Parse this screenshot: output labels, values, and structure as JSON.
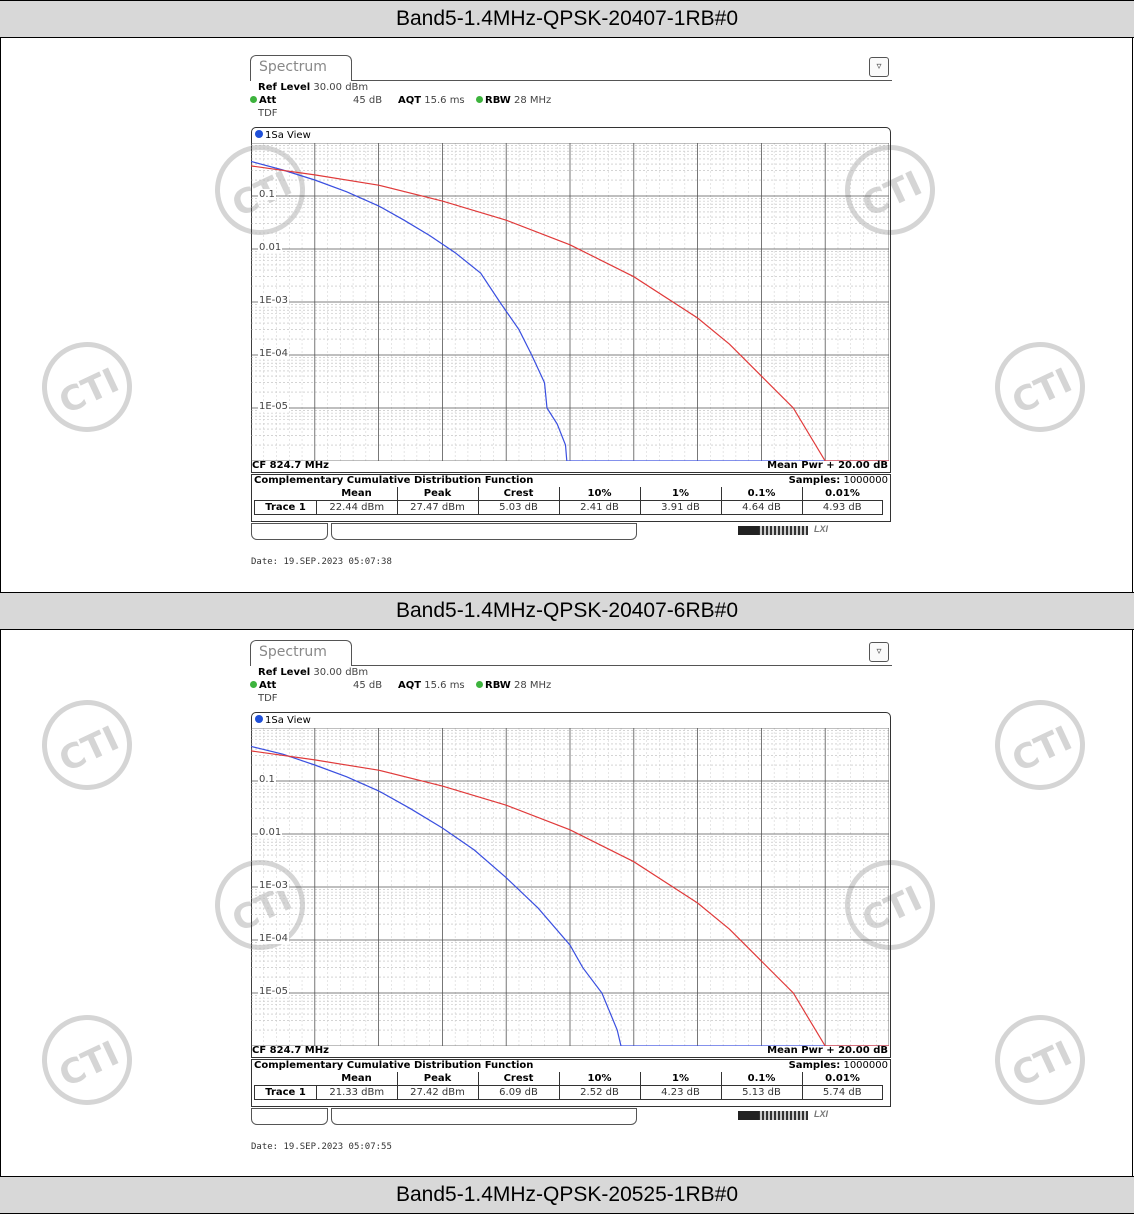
{
  "sections": [
    {
      "title": "Band5-1.4MHz-QPSK-20407-1RB#0",
      "panel": {
        "tab": "Spectrum",
        "ref_level_label": "Ref Level",
        "ref_level_value": "30.00 dBm",
        "att_label": "Att",
        "att_value": "45 dB",
        "aqt_label": "AQT",
        "aqt_value": "15.6 ms",
        "rbw_label": "RBW",
        "rbw_value": "28 MHz",
        "tdf": "TDF",
        "view": "1Sa View",
        "cf": "CF 824.7 MHz",
        "mean_pwr": "Mean Pwr + 20.00 dB",
        "func_title": "Complementary Cumulative Distribution Function",
        "samples_label": "Samples:",
        "samples_value": "1000000",
        "col_headers": [
          "Mean",
          "Peak",
          "Crest",
          "10%",
          "1%",
          "0.1%",
          "0.01%"
        ],
        "trace_label": "Trace 1",
        "values": [
          "22.44 dBm",
          "27.47 dBm",
          "5.03 dB",
          "2.41 dB",
          "3.91 dB",
          "4.64 dB",
          "4.93 dB"
        ],
        "date": "Date: 19.SEP.2023  05:07:38",
        "progress": 0.3
      }
    },
    {
      "title": "Band5-1.4MHz-QPSK-20407-6RB#0",
      "panel": {
        "tab": "Spectrum",
        "ref_level_label": "Ref Level",
        "ref_level_value": "30.00 dBm",
        "att_label": "Att",
        "att_value": "45 dB",
        "aqt_label": "AQT",
        "aqt_value": "15.6 ms",
        "rbw_label": "RBW",
        "rbw_value": "28 MHz",
        "tdf": "TDF",
        "view": "1Sa View",
        "cf": "CF 824.7 MHz",
        "mean_pwr": "Mean Pwr + 20.00 dB",
        "func_title": "Complementary Cumulative Distribution Function",
        "samples_label": "Samples:",
        "samples_value": "1000000",
        "col_headers": [
          "Mean",
          "Peak",
          "Crest",
          "10%",
          "1%",
          "0.1%",
          "0.01%"
        ],
        "trace_label": "Trace 1",
        "values": [
          "21.33 dBm",
          "27.42 dBm",
          "6.09 dB",
          "2.52 dB",
          "4.23 dB",
          "5.13 dB",
          "5.74 dB"
        ],
        "date": "Date: 19.SEP.2023  05:07:55",
        "progress": 0.3
      }
    },
    {
      "title": "Band5-1.4MHz-QPSK-20525-1RB#0"
    }
  ],
  "watermark": "CTI",
  "chart_data": [
    {
      "type": "line",
      "title": "Complementary Cumulative Distribution Function",
      "xlabel": "",
      "ylabel": "",
      "yscale": "log",
      "ylim": [
        1e-06,
        1
      ],
      "xlim": [
        0,
        10
      ],
      "y_ticks": [
        "0.1",
        "0.01",
        "1E-03",
        "1E-04",
        "1E-05"
      ],
      "grid": true,
      "colors": {
        "measured": "#3a4fe0",
        "reference": "#e03a3a"
      },
      "series": [
        {
          "x": [
            0,
            0.5,
            1,
            1.5,
            2,
            2.4,
            2.8,
            3.2,
            3.6,
            3.9,
            4.2,
            4.4,
            4.6,
            4.64,
            4.8,
            4.93,
            4.95,
            10
          ],
          "y": [
            0.45,
            0.31,
            0.2,
            0.12,
            0.065,
            0.035,
            0.018,
            0.0085,
            0.0035,
            0.001,
            0.0003,
            0.0001,
            3e-05,
            1e-05,
            5e-06,
            2e-06,
            1e-06,
            1e-06
          ]
        },
        {
          "x": [
            0,
            1,
            2,
            3,
            4,
            5,
            6,
            7,
            7.5,
            8,
            8.5,
            9,
            10
          ],
          "y": [
            0.37,
            0.25,
            0.16,
            0.08,
            0.035,
            0.012,
            0.003,
            0.0005,
            0.00016,
            4e-05,
            1e-05,
            1e-06,
            1e-06
          ]
        }
      ]
    },
    {
      "type": "line",
      "title": "Complementary Cumulative Distribution Function",
      "xlabel": "",
      "ylabel": "",
      "yscale": "log",
      "ylim": [
        1e-06,
        1
      ],
      "xlim": [
        0,
        10
      ],
      "y_ticks": [
        "0.1",
        "0.01",
        "1E-03",
        "1E-04",
        "1E-05"
      ],
      "grid": true,
      "colors": {
        "measured": "#3a4fe0",
        "reference": "#e03a3a"
      },
      "series": [
        {
          "x": [
            0,
            0.5,
            1,
            1.5,
            2,
            2.5,
            3,
            3.5,
            4,
            4.5,
            5,
            5.2,
            5.5,
            5.74,
            5.8,
            10
          ],
          "y": [
            0.45,
            0.32,
            0.2,
            0.12,
            0.065,
            0.03,
            0.013,
            0.005,
            0.0015,
            0.0004,
            8e-05,
            3e-05,
            1e-05,
            2e-06,
            1e-06,
            1e-06
          ]
        },
        {
          "x": [
            0,
            1,
            2,
            3,
            4,
            5,
            6,
            7,
            7.5,
            8,
            8.5,
            9,
            10
          ],
          "y": [
            0.37,
            0.25,
            0.16,
            0.08,
            0.035,
            0.012,
            0.003,
            0.0005,
            0.00016,
            4e-05,
            1e-05,
            1e-06,
            1e-06
          ]
        }
      ]
    }
  ]
}
